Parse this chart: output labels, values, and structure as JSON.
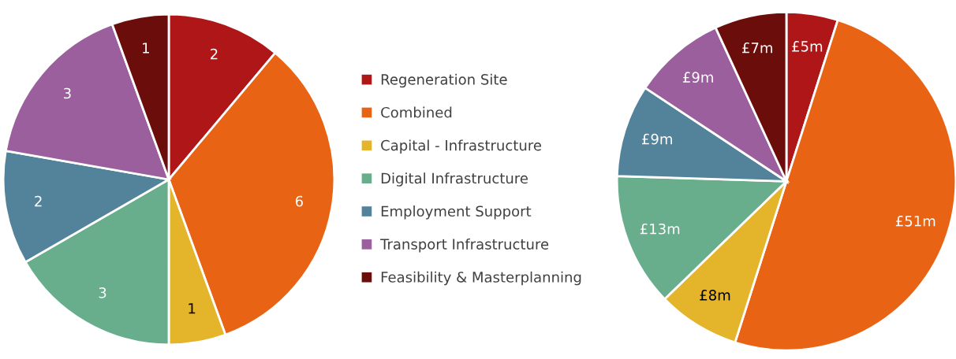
{
  "chart_data": [
    {
      "type": "pie",
      "categories": [
        "Regeneration Site",
        "Combined",
        "Capital - Infrastructure",
        "Digital Infrastructure",
        "Employment Support",
        "Transport Infrastructure",
        "Feasibility & Masterplanning"
      ],
      "values": [
        2,
        6,
        1,
        3,
        2,
        3,
        1
      ],
      "colors": [
        "#ae1618",
        "#e86414",
        "#e4b42a",
        "#68ae8c",
        "#52839a",
        "#9b5f9e",
        "#6b0d0b"
      ],
      "data_labels": true,
      "legend": "right"
    },
    {
      "type": "pie",
      "categories": [
        null,
        null,
        null,
        null,
        null,
        null,
        null
      ],
      "values": [
        5,
        51,
        8,
        13,
        9,
        9,
        7
      ],
      "value_labels": [
        "£5m",
        "£51m",
        "£8m",
        "£13m",
        "£9m",
        "£9m",
        "£7m"
      ],
      "colors": [
        "#ae1618",
        "#e86414",
        "#e4b42a",
        "#68ae8c",
        "#52839a",
        "#9b5f9e",
        "#6b0d0b"
      ]
    }
  ]
}
